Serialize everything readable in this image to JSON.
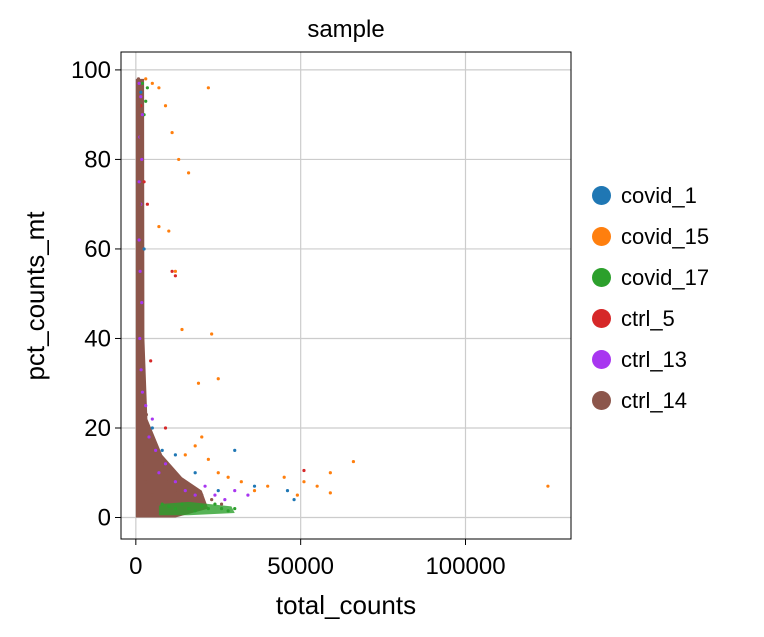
{
  "chart_data": {
    "type": "scatter",
    "title": "sample",
    "xlabel": "total_counts",
    "ylabel": "pct_counts_mt",
    "xlim": [
      -4500,
      132000
    ],
    "ylim": [
      -4.8,
      104
    ],
    "xticks": [
      0,
      50000,
      100000
    ],
    "xtick_labels": [
      "0",
      "50000",
      "100000"
    ],
    "yticks": [
      0,
      20,
      40,
      60,
      80,
      100
    ],
    "ytick_labels": [
      "0",
      "20",
      "40",
      "60",
      "80",
      "100"
    ],
    "grid": true,
    "legend_position": "right",
    "series": [
      {
        "name": "covid_1",
        "color": "#1f77b4",
        "points": [
          [
            1500,
            95
          ],
          [
            2500,
            60
          ],
          [
            5000,
            20
          ],
          [
            8000,
            15
          ],
          [
            12000,
            14
          ],
          [
            18000,
            10
          ],
          [
            25000,
            6
          ],
          [
            30000,
            15
          ],
          [
            36000,
            7
          ],
          [
            48000,
            4
          ],
          [
            46000,
            6
          ]
        ]
      },
      {
        "name": "covid_15",
        "color": "#ff7f0e",
        "points": [
          [
            3000,
            98
          ],
          [
            5000,
            97
          ],
          [
            7000,
            96
          ],
          [
            9000,
            92
          ],
          [
            11000,
            86
          ],
          [
            13000,
            80
          ],
          [
            22000,
            96
          ],
          [
            16000,
            77
          ],
          [
            7000,
            65
          ],
          [
            10000,
            64
          ],
          [
            12000,
            55
          ],
          [
            14000,
            42
          ],
          [
            23000,
            41
          ],
          [
            25000,
            31
          ],
          [
            19000,
            30
          ],
          [
            15000,
            14
          ],
          [
            18000,
            16
          ],
          [
            20000,
            18
          ],
          [
            22000,
            13
          ],
          [
            25000,
            10
          ],
          [
            28000,
            9
          ],
          [
            32000,
            8
          ],
          [
            36000,
            6
          ],
          [
            40000,
            7
          ],
          [
            45000,
            9
          ],
          [
            51000,
            8
          ],
          [
            55000,
            7
          ],
          [
            59000,
            10
          ],
          [
            59000,
            5.5
          ],
          [
            66000,
            12.5
          ],
          [
            49000,
            5
          ],
          [
            125000,
            7
          ]
        ]
      },
      {
        "name": "covid_17",
        "color": "#2ca02c",
        "points": [
          [
            2000,
            97
          ],
          [
            3000,
            93
          ],
          [
            3500,
            96
          ],
          [
            2500,
            90
          ],
          [
            8000,
            3
          ],
          [
            10000,
            2.5
          ],
          [
            12000,
            2
          ],
          [
            14000,
            3
          ],
          [
            16000,
            2
          ],
          [
            18000,
            1.5
          ],
          [
            20000,
            2.5
          ],
          [
            22000,
            2
          ],
          [
            24000,
            3
          ],
          [
            26000,
            2
          ],
          [
            28000,
            1.5
          ],
          [
            30000,
            2
          ]
        ]
      },
      {
        "name": "ctrl_5",
        "color": "#d62728",
        "points": [
          [
            1500,
            92
          ],
          [
            2500,
            75
          ],
          [
            11000,
            55
          ],
          [
            12000,
            54
          ],
          [
            3500,
            70
          ],
          [
            51000,
            10.5
          ],
          [
            4500,
            35
          ],
          [
            9000,
            20
          ]
        ]
      },
      {
        "name": "ctrl_13",
        "color": "#a836f0",
        "points": [
          [
            1000,
            97
          ],
          [
            1500,
            94
          ],
          [
            2000,
            90
          ],
          [
            1200,
            85
          ],
          [
            1800,
            80
          ],
          [
            1000,
            75
          ],
          [
            1500,
            70
          ],
          [
            1000,
            62
          ],
          [
            1300,
            55
          ],
          [
            1800,
            48
          ],
          [
            1200,
            40
          ],
          [
            1600,
            33
          ],
          [
            2000,
            28
          ],
          [
            3000,
            25
          ],
          [
            5000,
            22
          ],
          [
            6000,
            15
          ],
          [
            9000,
            12
          ],
          [
            12000,
            8
          ],
          [
            15000,
            6
          ],
          [
            18000,
            5
          ],
          [
            21000,
            7
          ],
          [
            24000,
            5
          ],
          [
            27000,
            4
          ],
          [
            30000,
            6
          ],
          [
            34000,
            5
          ],
          [
            4000,
            18
          ],
          [
            7000,
            10
          ]
        ]
      },
      {
        "name": "ctrl_14",
        "color": "#8c564b",
        "points": [
          [
            800,
            98
          ],
          [
            1000,
            92
          ],
          [
            1500,
            85
          ],
          [
            900,
            78
          ],
          [
            1200,
            70
          ],
          [
            900,
            65
          ],
          [
            1400,
            58
          ],
          [
            1000,
            50
          ],
          [
            1300,
            44
          ],
          [
            1600,
            38
          ],
          [
            1900,
            32
          ],
          [
            2400,
            27
          ],
          [
            3200,
            23
          ],
          [
            4200,
            19
          ],
          [
            5200,
            16
          ],
          [
            6500,
            13
          ],
          [
            8000,
            10
          ],
          [
            10000,
            8
          ],
          [
            12000,
            6
          ],
          [
            14000,
            5
          ],
          [
            17000,
            4
          ],
          [
            20000,
            5
          ],
          [
            23000,
            4
          ],
          [
            26000,
            3
          ],
          [
            3000,
            8
          ],
          [
            5000,
            5
          ],
          [
            7000,
            3
          ],
          [
            2000,
            12
          ],
          [
            1500,
            18
          ],
          [
            2500,
            2
          ]
        ]
      }
    ]
  }
}
